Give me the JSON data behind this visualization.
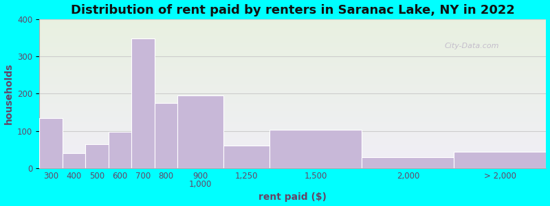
{
  "title": "Distribution of rent paid by renters in Saranac Lake, NY in 2022",
  "xlabel": "rent paid ($)",
  "ylabel": "households",
  "bar_color": "#C8B8D8",
  "bar_edgecolor": "#ffffff",
  "background_outer": "#00FFFF",
  "background_inner_top": "#e8f0e0",
  "background_inner_bottom": "#f0eef6",
  "ylim": [
    0,
    400
  ],
  "yticks": [
    0,
    100,
    200,
    300,
    400
  ],
  "values": [
    135,
    40,
    65,
    97,
    348,
    175,
    195,
    60,
    104,
    30,
    45
  ],
  "bin_lefts": [
    0,
    1,
    2,
    3,
    4,
    5,
    6,
    8,
    10,
    14,
    18
  ],
  "bin_widths": [
    1,
    1,
    1,
    1,
    1,
    1,
    2,
    2,
    4,
    4,
    4
  ],
  "tick_positions": [
    0.5,
    1.5,
    2.5,
    3.5,
    4.5,
    5.5,
    7.0,
    9.0,
    12.0,
    16.0,
    20.0
  ],
  "tick_labels": [
    "300",
    "400",
    "500",
    "600",
    "700",
    "800",
    "900\n1,000",
    "1,250",
    "1,500",
    "2,000",
    "> 2,000"
  ],
  "xlim": [
    0,
    22
  ],
  "watermark": "City-Data.com",
  "title_fontsize": 13,
  "axis_label_fontsize": 10,
  "tick_fontsize": 8.5
}
